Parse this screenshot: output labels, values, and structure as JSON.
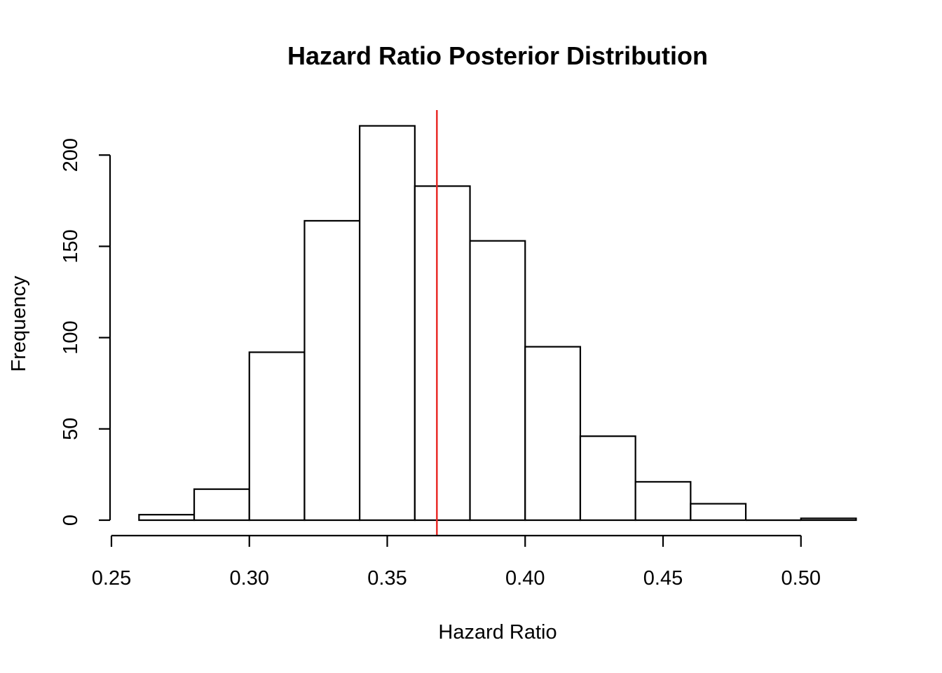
{
  "chart_data": {
    "type": "bar",
    "subtype": "histogram",
    "title": "Hazard Ratio Posterior Distribution",
    "xlabel": "Hazard Ratio",
    "ylabel": "Frequency",
    "bins": [
      {
        "start": 0.26,
        "end": 0.28,
        "count": 3
      },
      {
        "start": 0.28,
        "end": 0.3,
        "count": 17
      },
      {
        "start": 0.3,
        "end": 0.32,
        "count": 92
      },
      {
        "start": 0.32,
        "end": 0.34,
        "count": 164
      },
      {
        "start": 0.34,
        "end": 0.36,
        "count": 216
      },
      {
        "start": 0.36,
        "end": 0.38,
        "count": 183
      },
      {
        "start": 0.38,
        "end": 0.4,
        "count": 153
      },
      {
        "start": 0.4,
        "end": 0.42,
        "count": 95
      },
      {
        "start": 0.42,
        "end": 0.44,
        "count": 46
      },
      {
        "start": 0.44,
        "end": 0.46,
        "count": 21
      },
      {
        "start": 0.46,
        "end": 0.48,
        "count": 9
      },
      {
        "start": 0.48,
        "end": 0.5,
        "count": 0
      },
      {
        "start": 0.5,
        "end": 0.52,
        "count": 1
      }
    ],
    "reference_line": {
      "x": 0.368,
      "color": "#e8231f"
    },
    "xlim": [
      0.25,
      0.52
    ],
    "ylim": [
      0,
      225
    ],
    "x_ticks": [
      "0.25",
      "0.30",
      "0.35",
      "0.40",
      "0.45",
      "0.50"
    ],
    "y_ticks": [
      "0",
      "50",
      "100",
      "150",
      "200"
    ],
    "grid": false,
    "legend": "none",
    "bar_fill": "#ffffff",
    "bar_stroke": "#000000"
  }
}
